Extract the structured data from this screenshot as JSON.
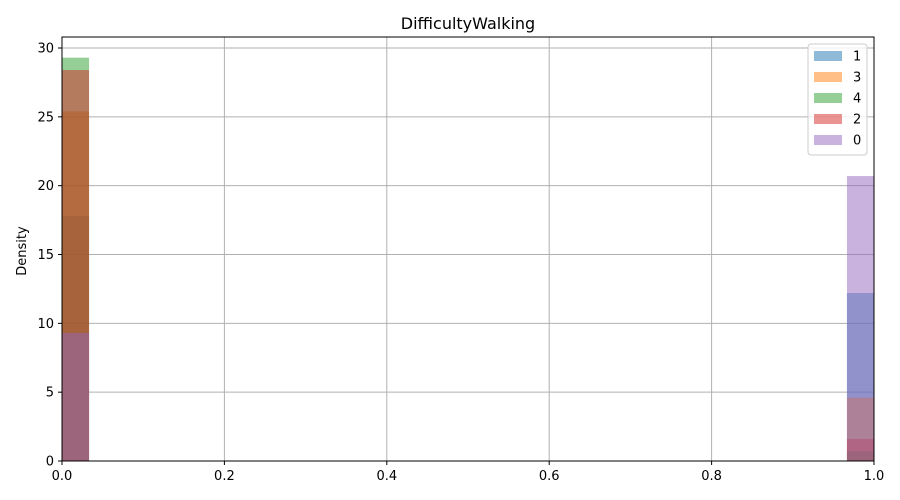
{
  "chart_data": {
    "type": "bar",
    "title": "DifficultyWalking",
    "xlabel": "",
    "ylabel": "Density",
    "xlim": [
      0,
      1
    ],
    "ylim": [
      0,
      30.8
    ],
    "xticks": [
      "0.0",
      "0.2",
      "0.4",
      "0.6",
      "0.8",
      "1.0"
    ],
    "xtick_values": [
      0,
      0.2,
      0.4,
      0.6,
      0.8,
      1.0
    ],
    "yticks": [
      "0",
      "5",
      "10",
      "15",
      "20",
      "25",
      "30"
    ],
    "ytick_values": [
      0,
      5,
      10,
      15,
      20,
      25,
      30
    ],
    "grid": true,
    "legend_position": "top-right",
    "bins": [
      [
        0,
        0.0333
      ],
      [
        0.9667,
        1.0
      ]
    ],
    "series": [
      {
        "name": "1",
        "color": "#1f77b4",
        "values": [
          17.8,
          12.2
        ]
      },
      {
        "name": "3",
        "color": "#ff7f0e",
        "values": [
          25.4,
          4.6
        ]
      },
      {
        "name": "4",
        "color": "#2ca02c",
        "values": [
          29.3,
          0.7
        ]
      },
      {
        "name": "2",
        "color": "#d62728",
        "values": [
          28.4,
          1.6
        ]
      },
      {
        "name": "0",
        "color": "#9467bd",
        "values": [
          9.3,
          20.7
        ]
      }
    ]
  }
}
